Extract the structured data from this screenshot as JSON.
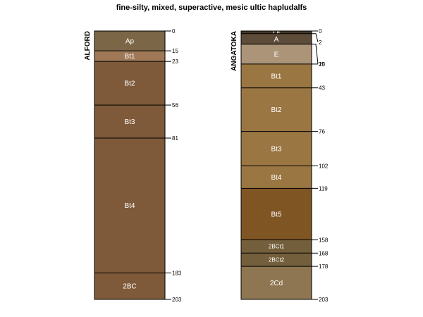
{
  "title": "fine-silty, mixed, superactive, mesic ultic hapludalfs",
  "profiles": [
    {
      "name": "ALFORD",
      "horizons": [
        {
          "name": "Ap",
          "top": 0,
          "bottom": 15,
          "color": "#7b6648"
        },
        {
          "name": "Bt1",
          "top": 15,
          "bottom": 23,
          "color": "#9f7858"
        },
        {
          "name": "Bt2",
          "top": 23,
          "bottom": 56,
          "color": "#7e5a3a"
        },
        {
          "name": "Bt3",
          "top": 56,
          "bottom": 81,
          "color": "#7e5a3a"
        },
        {
          "name": "Bt4",
          "top": 81,
          "bottom": 183,
          "color": "#7e5a3a"
        },
        {
          "name": "2BC",
          "top": 183,
          "bottom": 203,
          "color": "#7e5a3a"
        }
      ],
      "depth_labels": [
        "0",
        "15",
        "23",
        "56",
        "81",
        "183",
        "203"
      ]
    },
    {
      "name": "ANGATOKA",
      "horizons": [
        {
          "name": "Oi",
          "top": 0,
          "bottom": 2,
          "color": "#44382a"
        },
        {
          "name": "A",
          "top": 2,
          "bottom": 10,
          "color": "#5e4c3b"
        },
        {
          "name": "E",
          "top": 10,
          "bottom": 25,
          "color": "#ab9478"
        },
        {
          "name": "Bt1",
          "top": 25,
          "bottom": 43,
          "color": "#9a7642"
        },
        {
          "name": "Bt2",
          "top": 43,
          "bottom": 76,
          "color": "#9a7642"
        },
        {
          "name": "Bt3",
          "top": 76,
          "bottom": 102,
          "color": "#9a7642"
        },
        {
          "name": "Bt4",
          "top": 102,
          "bottom": 119,
          "color": "#9a7642"
        },
        {
          "name": "Bt5",
          "top": 119,
          "bottom": 158,
          "color": "#7f5623"
        },
        {
          "name": "2BCt1",
          "top": 158,
          "bottom": 168,
          "color": "#745f3c"
        },
        {
          "name": "2BCt2",
          "top": 168,
          "bottom": 178,
          "color": "#745f3c"
        },
        {
          "name": "2Cd",
          "top": 178,
          "bottom": 203,
          "color": "#8d7651"
        }
      ],
      "depth_labels": [
        "0",
        "2",
        "10",
        "25",
        "43",
        "76",
        "102",
        "119",
        "158",
        "168",
        "178",
        "203"
      ]
    }
  ]
}
